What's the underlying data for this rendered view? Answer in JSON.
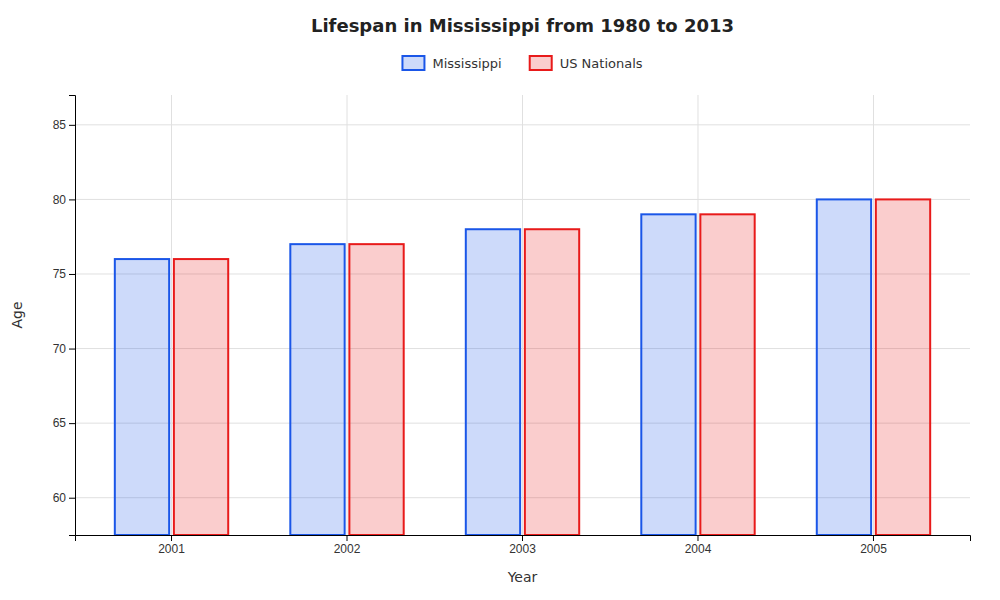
{
  "chart_data": {
    "type": "bar",
    "title": "Lifespan in Mississippi from 1980 to 2013",
    "x_label": "Year",
    "y_label": "Age",
    "categories": [
      "2001",
      "2002",
      "2003",
      "2004",
      "2005"
    ],
    "series": [
      {
        "name": "Mississippi",
        "color": "#1a56e8",
        "values": [
          76,
          77,
          78,
          79,
          80
        ]
      },
      {
        "name": "US Nationals",
        "color": "#e81a1a",
        "values": [
          76,
          77,
          78,
          79,
          80
        ]
      }
    ],
    "ylim": [
      57.5,
      87
    ],
    "yticks": [
      60,
      65,
      70,
      75,
      80,
      85
    ],
    "grid": true,
    "legend": "top"
  }
}
